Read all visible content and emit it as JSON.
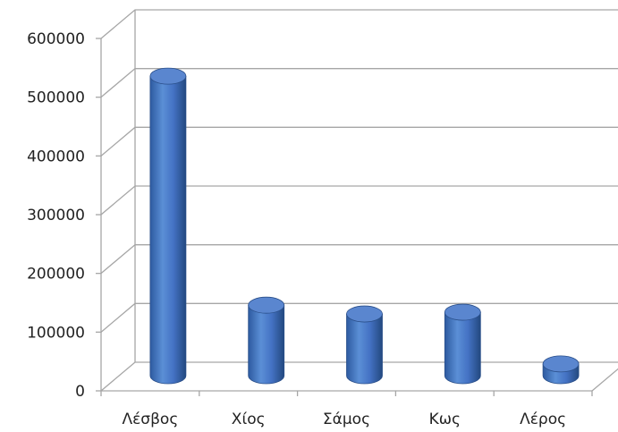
{
  "chart_data": {
    "type": "bar",
    "categories": [
      "Λέσβος",
      "Χίος",
      "Σάμος",
      "Κως",
      "Λέρος"
    ],
    "values": [
      510000,
      120000,
      105000,
      108000,
      20000
    ],
    "title": "",
    "xlabel": "",
    "ylabel": "",
    "ylim": [
      0,
      600000
    ],
    "yticks": [
      "0",
      "100000",
      "200000",
      "300000",
      "400000",
      "500000",
      "600000"
    ],
    "grid": true,
    "style": "3d-cylinder",
    "colors": {
      "bar": "#4472C4",
      "grid": "#a6a6a6"
    }
  }
}
